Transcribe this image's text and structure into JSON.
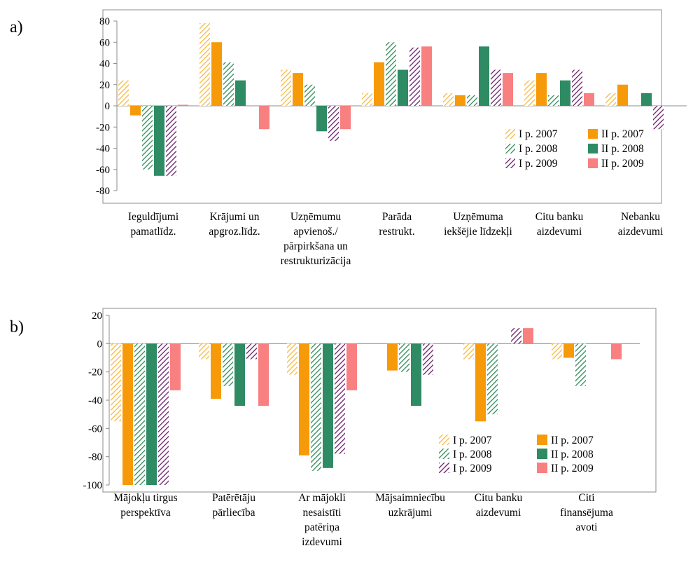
{
  "colors": {
    "I p. 2007": "#F5B942",
    "II p. 2007": "#F79A0A",
    "I p. 2008": "#2E8B57",
    "II p. 2008": "#2E8B64",
    "I p. 2009": "#6A1F6A",
    "II p. 2009": "#F88080"
  },
  "chart_data": [
    {
      "panel_label": "a)",
      "type": "bar",
      "ylim": [
        -80,
        80
      ],
      "yticks": [
        80,
        60,
        40,
        20,
        0,
        -20,
        -40,
        -60,
        -80
      ],
      "ytick_labels": [
        "80",
        "60",
        "40",
        "20",
        "0",
        "-20",
        "-40",
        "-60",
        "-80"
      ],
      "grid": false,
      "legend_position": "bottom-right",
      "categories": [
        [
          "Ieguldījumi",
          "pamatlīdz."
        ],
        [
          "Krājumi un",
          "apgroz.līdz."
        ],
        [
          "Uzņēmumu",
          "apvienoš./",
          "pārpirkšana un",
          "restrukturizācija"
        ],
        [
          "Parāda",
          "restrukt."
        ],
        [
          "Uzņēmuma",
          "iekšējie līdzekļi"
        ],
        [
          "Citu banku",
          "aizdevumi"
        ],
        [
          "Nebanku",
          "aizdevumi"
        ]
      ],
      "series": [
        {
          "name": "I p. 2007",
          "pattern": "hatch",
          "values": [
            24,
            78,
            34,
            12,
            12,
            24,
            12
          ]
        },
        {
          "name": "II p. 2007",
          "pattern": "solid",
          "values": [
            -9,
            60,
            31,
            41,
            10,
            31,
            20
          ]
        },
        {
          "name": "I p. 2008",
          "pattern": "hatch",
          "values": [
            -60,
            41,
            20,
            60,
            10,
            10,
            0
          ]
        },
        {
          "name": "II p. 2008",
          "pattern": "solid",
          "values": [
            -66,
            24,
            -24,
            34,
            56,
            24,
            12
          ]
        },
        {
          "name": "I p. 2009",
          "pattern": "hatch",
          "values": [
            -66,
            0,
            -33,
            55,
            34,
            34,
            -22
          ]
        },
        {
          "name": "II p. 2009",
          "pattern": "solid",
          "values": [
            1,
            -22,
            -22,
            56,
            31,
            12,
            0
          ]
        }
      ],
      "legend": [
        [
          "I p. 2007",
          "II p. 2007"
        ],
        [
          "I p. 2008",
          "II p. 2008"
        ],
        [
          "I p. 2009",
          "II p. 2009"
        ]
      ]
    },
    {
      "panel_label": "b)",
      "type": "bar",
      "ylim": [
        -100,
        20
      ],
      "yticks": [
        20,
        0,
        -20,
        -40,
        -60,
        -80,
        -100
      ],
      "ytick_labels": [
        "20",
        "0",
        "-20",
        "-40",
        "-60",
        "-80",
        "-100"
      ],
      "grid": false,
      "legend_position": "bottom-right",
      "categories": [
        [
          "Mājokļu tirgus",
          "perspektīva"
        ],
        [
          "Patērētāju",
          "pārliecība"
        ],
        [
          "Ar mājokli",
          "nesaistīti",
          "patēriņa",
          "izdevumi"
        ],
        [
          "Mājsaimniecību",
          "uzkrājumi"
        ],
        [
          "Citu banku",
          "aizdevumi"
        ],
        [
          "Citi",
          "finansējuma",
          "avoti"
        ]
      ],
      "series": [
        {
          "name": "I p. 2007",
          "pattern": "hatch",
          "values": [
            -55,
            -11,
            -22,
            0,
            -11,
            -11
          ]
        },
        {
          "name": "II p. 2007",
          "pattern": "solid",
          "values": [
            -100,
            -39,
            -79,
            -19,
            -55,
            -10
          ]
        },
        {
          "name": "I p. 2008",
          "pattern": "hatch",
          "values": [
            -100,
            -30,
            -90,
            -20,
            -50,
            -30
          ]
        },
        {
          "name": "II p. 2008",
          "pattern": "solid",
          "values": [
            -100,
            -44,
            -88,
            -44,
            0,
            0
          ]
        },
        {
          "name": "I p. 2009",
          "pattern": "hatch",
          "values": [
            -100,
            -11,
            -78,
            -22,
            11,
            0
          ]
        },
        {
          "name": "II p. 2009",
          "pattern": "solid",
          "values": [
            -33,
            -44,
            -33,
            0,
            11,
            -11
          ]
        }
      ],
      "legend": [
        [
          "I p. 2007",
          "II p. 2007"
        ],
        [
          "I p. 2008",
          "II p. 2008"
        ],
        [
          "I p. 2009",
          "II p. 2009"
        ]
      ]
    }
  ]
}
